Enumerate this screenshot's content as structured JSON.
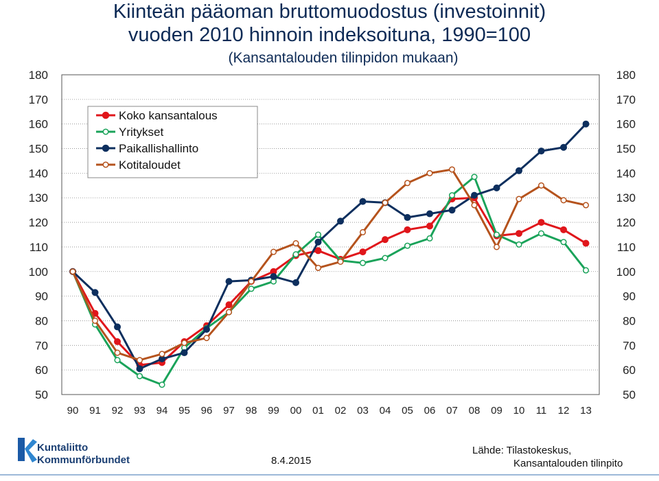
{
  "header": {
    "title_line1": "Kiinteän pääoman bruttomuodostus (investoinnit)",
    "title_line2": "vuoden 2010 hinnoin indeksoituna, 1990=100",
    "subtitle": "(Kansantalouden tilinpidon mukaan)"
  },
  "footer": {
    "date": "8.4.2015",
    "source_line1": "Lähde: Tilastokeskus,",
    "source_line2": "Kansantalouden tilinpito",
    "logo_line1": "Kuntaliitto",
    "logo_line2": "Kommunförbundet"
  },
  "chart_data": {
    "type": "line",
    "title": "Kiinteän pääoman bruttomuodostus (investoinnit) vuoden 2010 hinnoin indeksoituna, 1990=100",
    "subtitle": "(Kansantalouden tilinpidon mukaan)",
    "x": [
      "90",
      "91",
      "92",
      "93",
      "94",
      "95",
      "96",
      "97",
      "98",
      "99",
      "00",
      "01",
      "02",
      "03",
      "04",
      "05",
      "06",
      "07",
      "08",
      "09",
      "10",
      "11",
      "12",
      "13"
    ],
    "ylim": [
      50,
      180
    ],
    "yticks": [
      50,
      60,
      70,
      80,
      90,
      100,
      110,
      120,
      130,
      140,
      150,
      160,
      170,
      180
    ],
    "grid": true,
    "legend_position": "top-left",
    "series": [
      {
        "name": "Koko kansantalous",
        "color": "#e0161b",
        "marker": "filled",
        "values": [
          100,
          83,
          71.5,
          62,
          63,
          71.5,
          78,
          86.5,
          96,
          100,
          106.5,
          108.5,
          105,
          108,
          113,
          117,
          118.5,
          129.5,
          130,
          114.5,
          115.5,
          120,
          117,
          111.5
        ]
      },
      {
        "name": "Yritykset",
        "color": "#1aa35a",
        "marker": "open",
        "values": [
          100,
          78.5,
          64,
          57.5,
          54,
          69,
          77,
          83.5,
          93,
          96,
          107,
          115,
          104.5,
          103.5,
          105.5,
          110.5,
          113.5,
          131,
          138.5,
          115,
          111,
          115.5,
          112,
          100.5
        ]
      },
      {
        "name": "Paikallishallinto",
        "color": "#0d2f5e",
        "marker": "filled",
        "values": [
          100,
          91.5,
          77.5,
          60.5,
          64.5,
          67,
          76.5,
          96,
          96.5,
          98,
          95.5,
          112,
          120.5,
          128.5,
          128,
          122,
          123.5,
          125,
          131,
          134,
          141,
          149,
          150.5,
          160
        ]
      },
      {
        "name": "Kotitaloudet",
        "color": "#b5531d",
        "marker": "open",
        "values": [
          100,
          80,
          67,
          64,
          66.5,
          71,
          73,
          83.5,
          96,
          108,
          111.5,
          101.5,
          104,
          116,
          128,
          136,
          140,
          141.5,
          127,
          110,
          129.5,
          135,
          129,
          127
        ]
      }
    ]
  }
}
